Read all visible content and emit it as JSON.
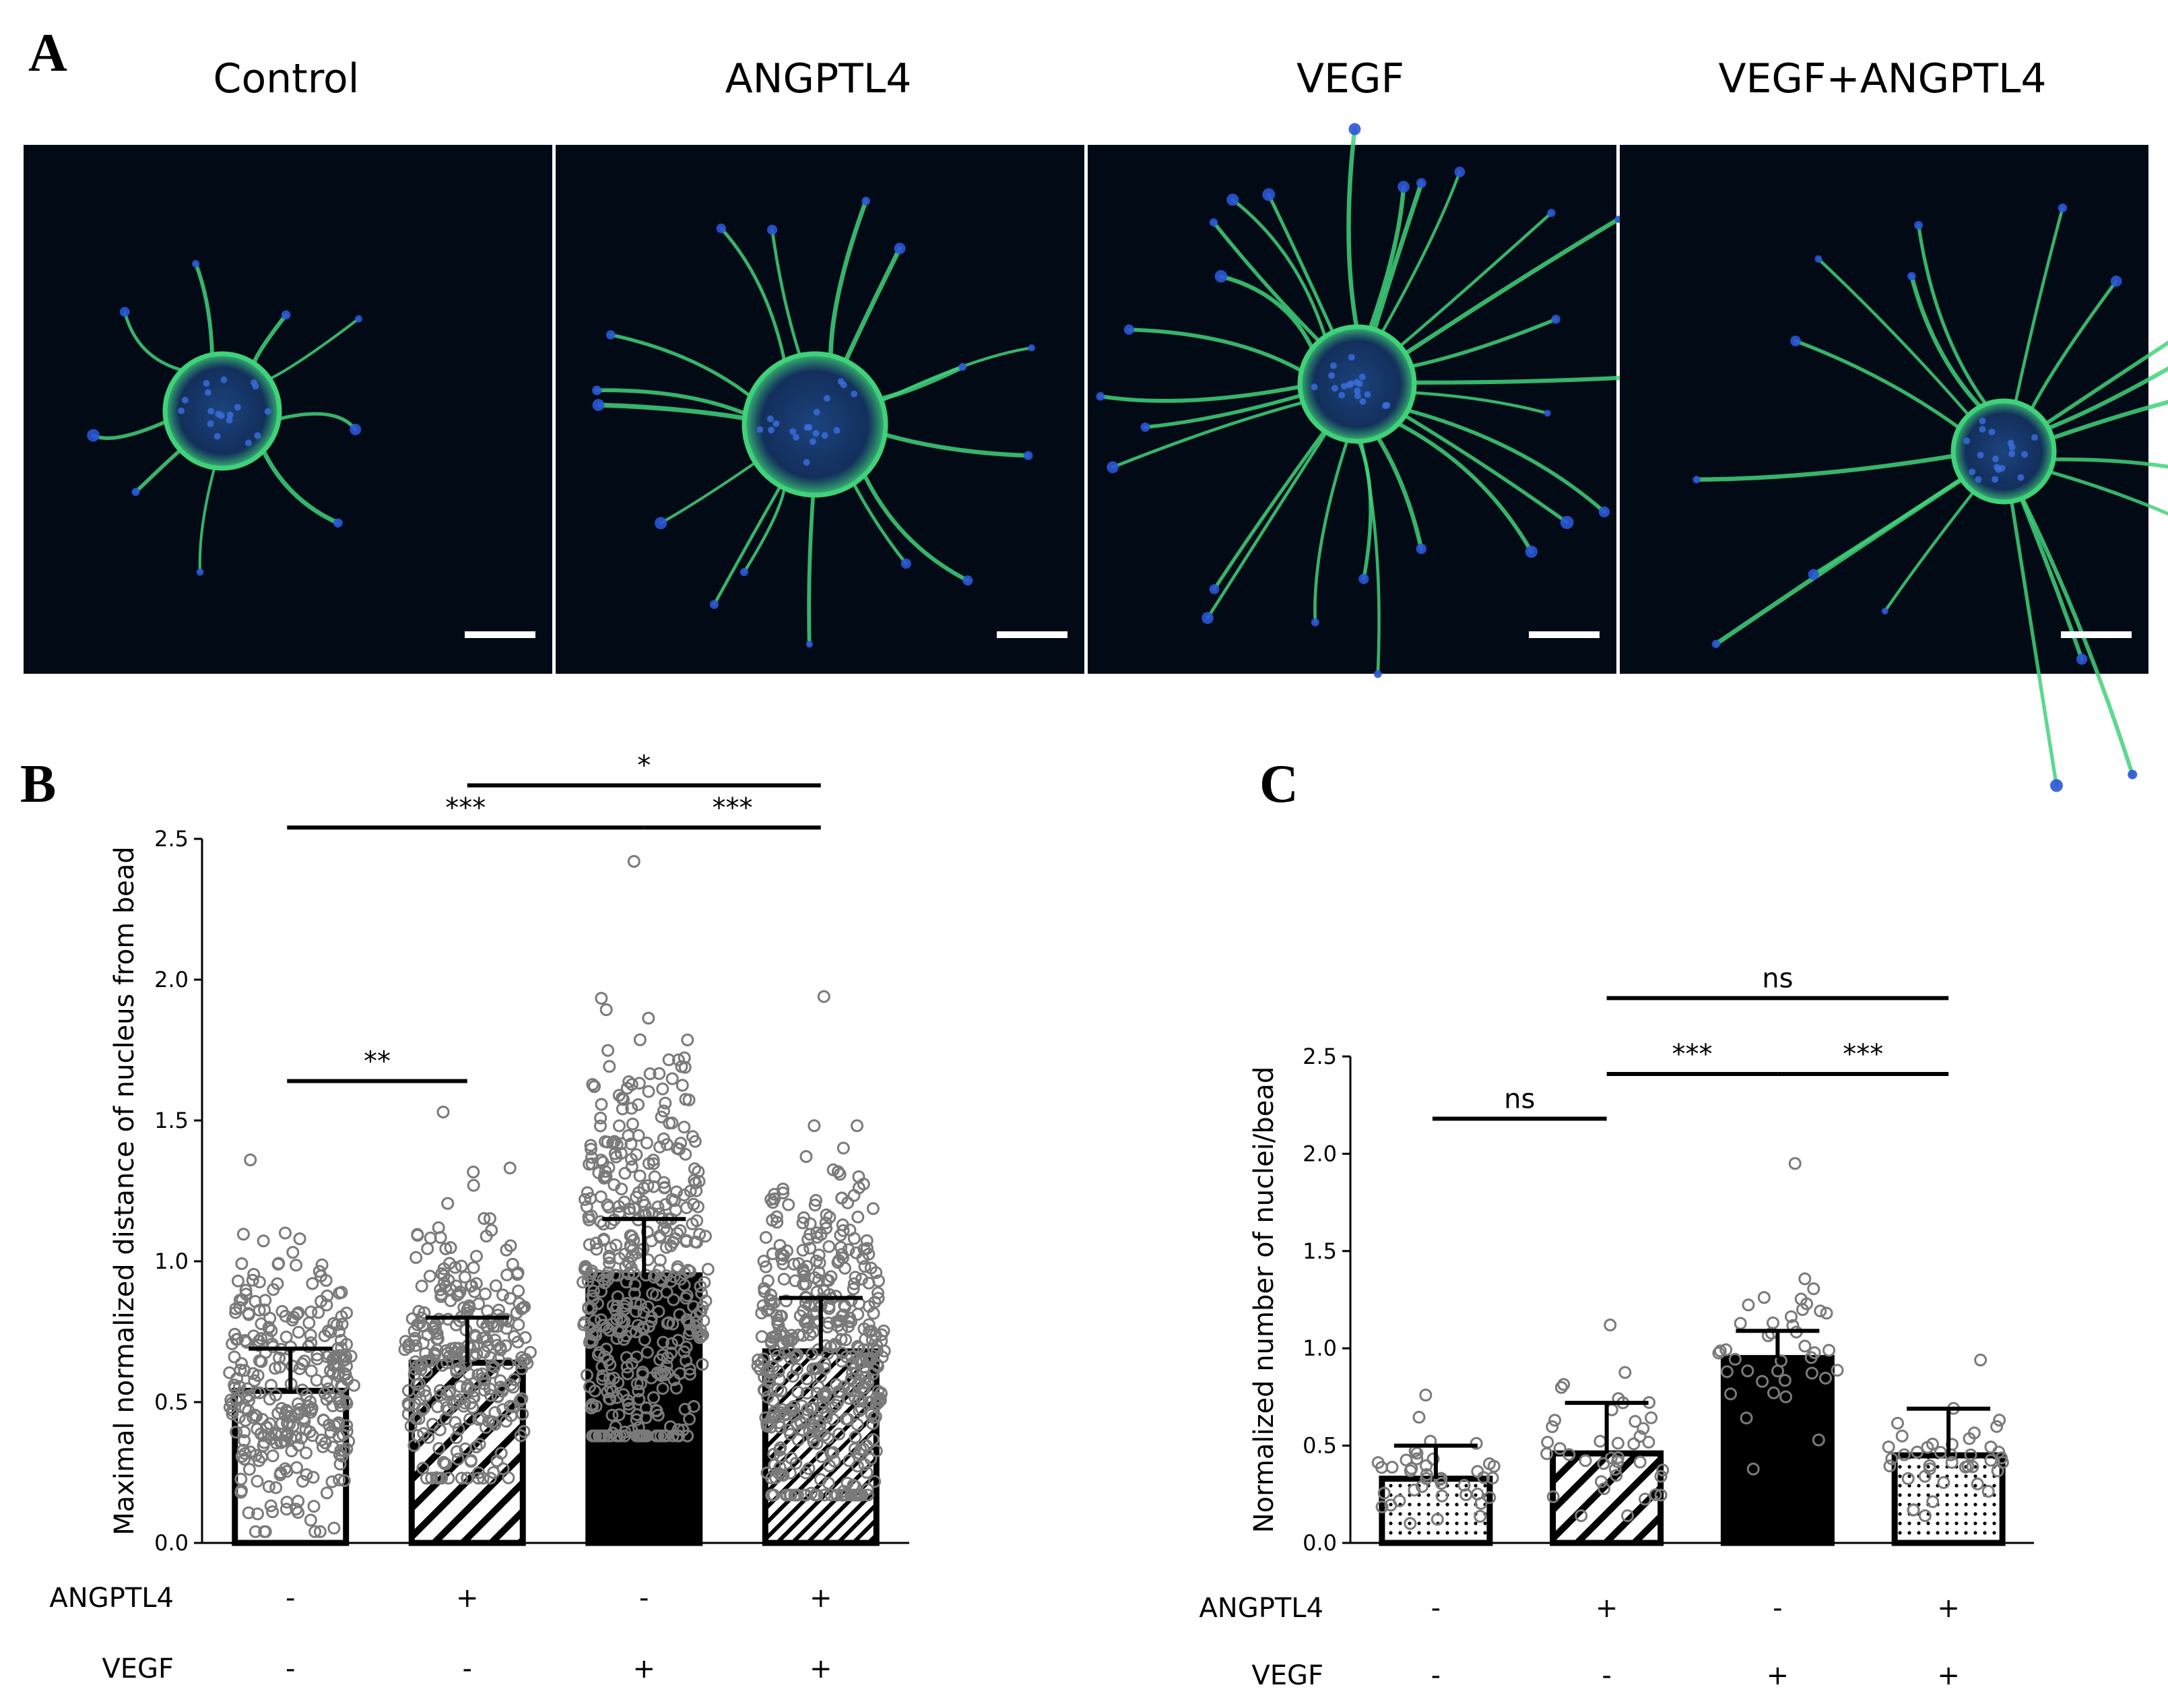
{
  "panel_a": {
    "letter": "A",
    "titles": [
      "Control",
      "ANGPTL4",
      "VEGF",
      "VEGF+ANGPTL4"
    ]
  },
  "chart_data": [
    {
      "panel": "B",
      "type": "bar",
      "categories": [
        "Control",
        "ANGPTL4",
        "VEGF",
        "VEGF+ANGPTL4"
      ],
      "values": [
        0.54,
        0.64,
        0.95,
        0.68
      ],
      "errors": [
        0.15,
        0.16,
        0.2,
        0.19
      ],
      "ylim": [
        0,
        2.5
      ],
      "yticks": [
        "0.0",
        "0.5",
        "1.0",
        "1.5",
        "2.0",
        "2.5"
      ],
      "ylabel": "Maximal normalized distance of nucleus from bead",
      "bar_styles": [
        "white",
        "hatch",
        "black",
        "hatch-fine"
      ],
      "point_counts": [
        300,
        300,
        450,
        450
      ],
      "point_min": [
        0.04,
        0.23,
        0.38,
        0.17
      ],
      "point_max": [
        1.36,
        1.53,
        2.42,
        1.94
      ],
      "treatments": [
        {
          "label": "ANGPTL4",
          "symbols": [
            "-",
            "+",
            "-",
            "+"
          ]
        },
        {
          "label": "VEGF",
          "symbols": [
            "-",
            "-",
            "+",
            "+"
          ]
        }
      ],
      "significance": [
        {
          "from": 0,
          "to": 1,
          "label": "**",
          "y": 1.64
        },
        {
          "from": 0,
          "to": 2,
          "label": "***",
          "y": 2.54
        },
        {
          "from": 2,
          "to": 3,
          "label": "***",
          "y": 2.54
        },
        {
          "from": 1,
          "to": 3,
          "label": "*",
          "y": 2.69
        }
      ]
    },
    {
      "panel": "C",
      "type": "bar",
      "categories": [
        "Control",
        "ANGPTL4",
        "VEGF",
        "VEGF+ANGPTL4"
      ],
      "values": [
        0.33,
        0.46,
        0.95,
        0.45
      ],
      "errors": [
        0.17,
        0.26,
        0.14,
        0.24
      ],
      "ylim": [
        0,
        2.5
      ],
      "yticks": [
        "0.0",
        "0.5",
        "1.0",
        "1.5",
        "2.0",
        "2.5"
      ],
      "ylabel": "Normalized number of nuclei/bead",
      "bar_styles": [
        "dots",
        "hatch",
        "black",
        "dots"
      ],
      "point_counts": [
        40,
        40,
        40,
        40
      ],
      "point_min": [
        0.1,
        0.14,
        0.38,
        0.14
      ],
      "point_max": [
        0.76,
        1.12,
        1.95,
        0.94
      ],
      "treatments": [
        {
          "label": "ANGPTL4",
          "symbols": [
            "-",
            "+",
            "-",
            "+"
          ]
        },
        {
          "label": "VEGF",
          "symbols": [
            "-",
            "-",
            "+",
            "+"
          ]
        }
      ],
      "significance": [
        {
          "from": 0,
          "to": 1,
          "label": "ns",
          "y": 2.18
        },
        {
          "from": 1,
          "to": 2,
          "label": "***",
          "y": 2.41
        },
        {
          "from": 2,
          "to": 3,
          "label": "***",
          "y": 2.41
        },
        {
          "from": 1,
          "to": 3,
          "label": "ns",
          "y": 2.8
        }
      ]
    }
  ],
  "colors": {
    "image_bg": "#020a16",
    "actin": "#3fd27a",
    "nuclei": "#2a55d6",
    "point_stroke": "#7a7a7a",
    "bar_black": "#000000"
  }
}
